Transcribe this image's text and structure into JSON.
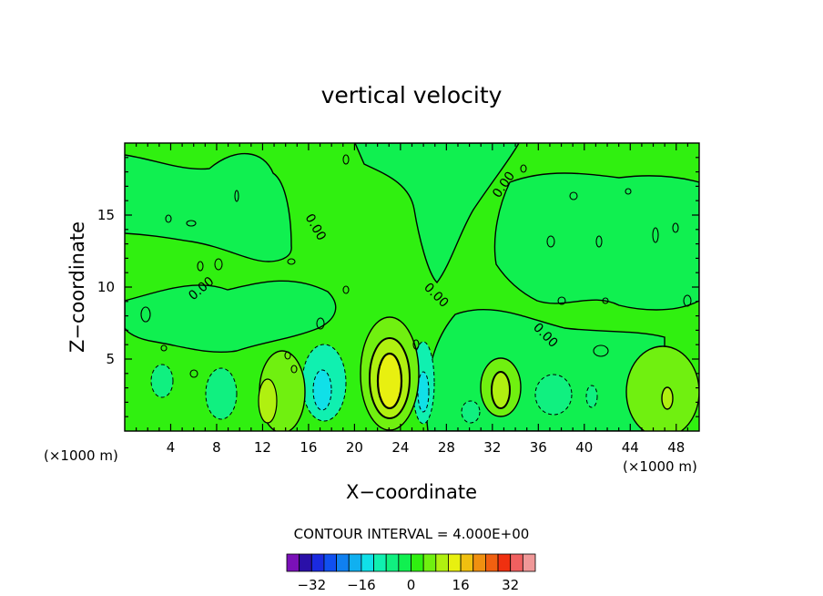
{
  "chart_data": {
    "type": "heatmap",
    "title": "vertical velocity",
    "xlabel": "X−coordinate",
    "ylabel": "Z−coordinate",
    "x_unit": "(×1000 m)",
    "z_unit": "(×1000 m)",
    "xlim": [
      0,
      50
    ],
    "ylim": [
      0,
      20
    ],
    "x_ticks": [
      4,
      8,
      12,
      16,
      20,
      24,
      28,
      32,
      36,
      40,
      44,
      48
    ],
    "y_ticks": [
      5,
      10,
      15
    ],
    "contour_interval_text": "CONTOUR INTERVAL = 4.000E+00",
    "contour_interval": 4,
    "contour_label": "0.00",
    "colorbar": {
      "colors": [
        "#7a10b8",
        "#2a10a8",
        "#1a2ae0",
        "#1050f0",
        "#1080f0",
        "#10b0f0",
        "#10e0e8",
        "#10f0b0",
        "#10f080",
        "#10f050",
        "#30f010",
        "#70f010",
        "#b0f010",
        "#e8f010",
        "#f0c010",
        "#f09010",
        "#f06010",
        "#f03010",
        "#f06060",
        "#f09898"
      ],
      "tick_labels": [
        "−32",
        "−16",
        "0",
        "16",
        "32"
      ],
      "tick_values": [
        -32,
        -16,
        0,
        16,
        32
      ]
    },
    "features": [
      {
        "x": 23.2,
        "z": 3.2,
        "value": 16,
        "sign": "positive"
      },
      {
        "x": 33.0,
        "z": 2.7,
        "value": 8,
        "sign": "positive"
      },
      {
        "x": 47.0,
        "z": 2.4,
        "value": 8,
        "sign": "positive"
      },
      {
        "x": 13.5,
        "z": 2.2,
        "value": 4,
        "sign": "positive"
      },
      {
        "x": 17.5,
        "z": 2.6,
        "value": -8,
        "sign": "negative"
      },
      {
        "x": 26.0,
        "z": 2.4,
        "value": -8,
        "sign": "negative"
      },
      {
        "x": 3.0,
        "z": 3.2,
        "value": -4,
        "sign": "negative"
      },
      {
        "x": 8.0,
        "z": 2.5,
        "value": -4,
        "sign": "negative"
      },
      {
        "x": 37.5,
        "z": 2.5,
        "value": -4,
        "sign": "negative"
      }
    ]
  }
}
